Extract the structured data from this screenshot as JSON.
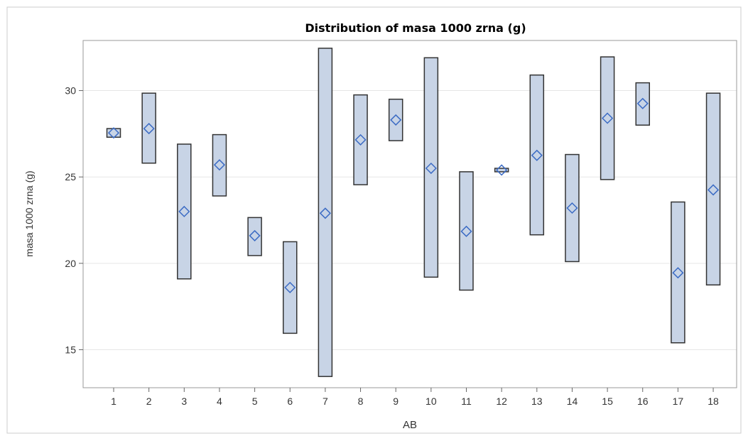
{
  "chart_data": {
    "type": "box",
    "title": "Distribution of masa 1000 zrna (g)",
    "xlabel": "AB",
    "ylabel": "masa 1000 zrna (g)",
    "categories": [
      "1",
      "2",
      "3",
      "4",
      "5",
      "6",
      "7",
      "8",
      "9",
      "10",
      "11",
      "12",
      "13",
      "14",
      "15",
      "16",
      "17",
      "18"
    ],
    "yticks": [
      "15",
      "20",
      "25",
      "30"
    ],
    "ylim": [
      12.8,
      32.9
    ],
    "grid": true,
    "legend": "none",
    "boxes": [
      {
        "min": 27.3,
        "max": 27.8,
        "mean": 27.55
      },
      {
        "min": 25.8,
        "max": 29.85,
        "mean": 27.8
      },
      {
        "min": 19.1,
        "max": 26.9,
        "mean": 23.0
      },
      {
        "min": 23.9,
        "max": 27.45,
        "mean": 25.7
      },
      {
        "min": 20.45,
        "max": 22.65,
        "mean": 21.6
      },
      {
        "min": 15.95,
        "max": 21.25,
        "mean": 18.6
      },
      {
        "min": 13.45,
        "max": 32.45,
        "mean": 22.9
      },
      {
        "min": 24.55,
        "max": 29.75,
        "mean": 27.15
      },
      {
        "min": 27.1,
        "max": 29.5,
        "mean": 28.3
      },
      {
        "min": 19.2,
        "max": 31.9,
        "mean": 25.5
      },
      {
        "min": 18.45,
        "max": 25.3,
        "mean": 21.85
      },
      {
        "min": 25.3,
        "max": 25.5,
        "mean": 25.4
      },
      {
        "min": 21.65,
        "max": 30.9,
        "mean": 26.25
      },
      {
        "min": 20.1,
        "max": 26.3,
        "mean": 23.2
      },
      {
        "min": 24.85,
        "max": 31.95,
        "mean": 28.4
      },
      {
        "min": 28.0,
        "max": 30.45,
        "mean": 29.25
      },
      {
        "min": 15.4,
        "max": 23.55,
        "mean": 19.45
      },
      {
        "min": 18.75,
        "max": 29.85,
        "mean": 24.25
      }
    ],
    "colors": {
      "box_fill": "#c8d4e6",
      "box_stroke": "#333333",
      "mean_marker": "#3b6bc4",
      "grid": "#e6e6e6",
      "frame": "#999999"
    }
  }
}
